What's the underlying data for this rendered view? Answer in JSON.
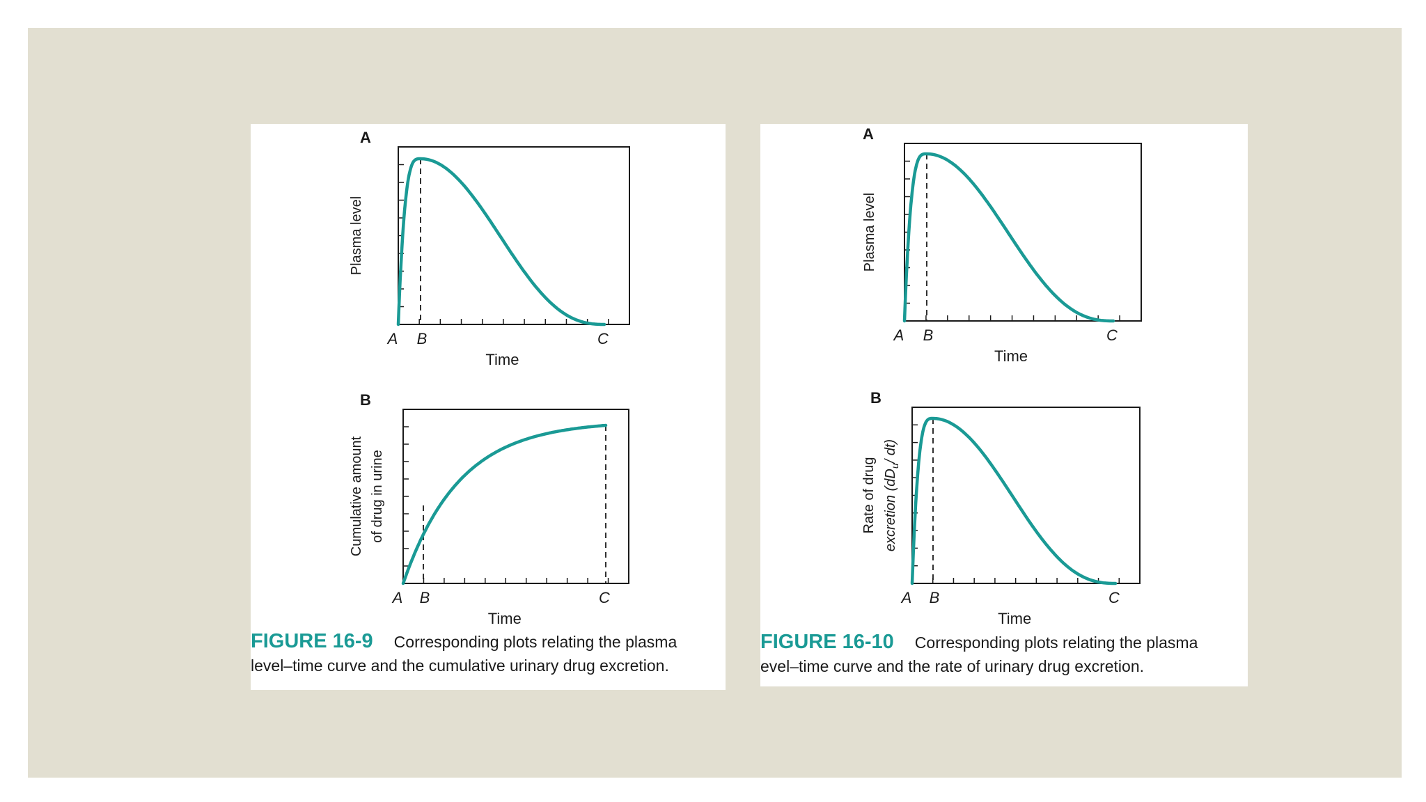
{
  "figures": [
    {
      "number": "FIGURE 16-9",
      "caption_line1": "Corresponding plots relating the plasma",
      "caption_line2": "level–time curve and the cumulative urinary drug excretion."
    },
    {
      "number": "FIGURE 16-10",
      "caption_line1": "Corresponding plots relating the plasma",
      "caption_line2": "evel–time curve and the rate of urinary drug excretion."
    }
  ],
  "colors": {
    "curve": "#1a9a95",
    "background": "#e2dfd1",
    "panel": "#ffffff",
    "ink": "#1a1a1a"
  },
  "chart_data": [
    {
      "figure": "FIGURE 16-9",
      "panel_label": "A",
      "type": "line",
      "xlabel": "Time",
      "ylabel": "Plasma level",
      "x_markers": [
        "A",
        "B",
        "C"
      ],
      "series": [
        {
          "shape": "rise-to-peak-then-decline",
          "x": [
            0,
            0.1,
            0.2,
            0.4,
            0.6,
            0.8,
            0.9,
            1.0
          ],
          "values": [
            0,
            1.0,
            0.87,
            0.55,
            0.27,
            0.07,
            0.02,
            0
          ]
        }
      ],
      "peak_at": "B",
      "grid": false
    },
    {
      "figure": "FIGURE 16-9",
      "panel_label": "B",
      "type": "line",
      "xlabel": "Time",
      "ylabel_line1": "Cumulative amount",
      "ylabel_line2": "of drug in urine",
      "x_markers": [
        "A",
        "B",
        "C"
      ],
      "series": [
        {
          "shape": "cumulative-rise-to-plateau",
          "x": [
            0,
            0.1,
            0.2,
            0.4,
            0.6,
            0.8,
            1.0
          ],
          "values": [
            0,
            0.46,
            0.63,
            0.81,
            0.91,
            0.97,
            1.0
          ]
        }
      ],
      "grid": false
    },
    {
      "figure": "FIGURE 16-10",
      "panel_label": "A",
      "type": "line",
      "xlabel": "Time",
      "ylabel": "Plasma level",
      "x_markers": [
        "A",
        "B",
        "C"
      ],
      "series": [
        {
          "shape": "rise-to-peak-then-decline",
          "x": [
            0,
            0.1,
            0.2,
            0.4,
            0.6,
            0.8,
            0.9,
            1.0
          ],
          "values": [
            0,
            1.0,
            0.87,
            0.55,
            0.27,
            0.07,
            0.02,
            0
          ]
        }
      ],
      "peak_at": "B",
      "grid": false
    },
    {
      "figure": "FIGURE 16-10",
      "panel_label": "B",
      "type": "line",
      "xlabel": "Time",
      "ylabel_line1": "Rate of drug",
      "ylabel_line2": "excretion (dD",
      "ylabel_sub": "u",
      "ylabel_line2_end": "/ dt)",
      "x_markers": [
        "A",
        "B",
        "C"
      ],
      "series": [
        {
          "shape": "rise-to-peak-then-decline",
          "x": [
            0,
            0.1,
            0.2,
            0.4,
            0.6,
            0.8,
            0.9,
            1.0
          ],
          "values": [
            0,
            1.0,
            0.87,
            0.55,
            0.27,
            0.07,
            0.02,
            0
          ]
        }
      ],
      "peak_at": "B",
      "grid": false
    }
  ]
}
